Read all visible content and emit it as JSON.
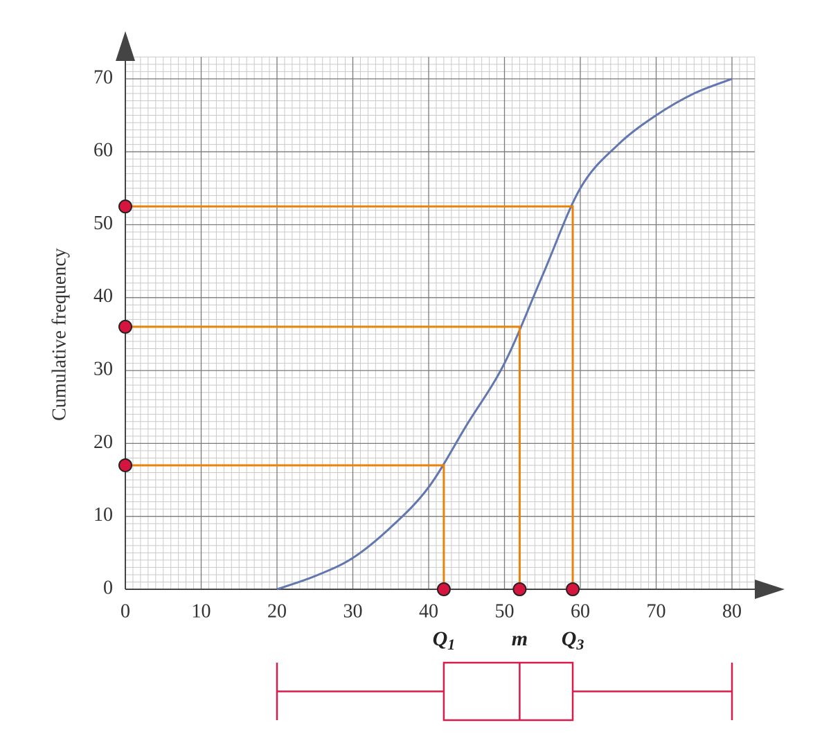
{
  "chart_data": {
    "type": "line",
    "y_label": "Cumulative frequency",
    "series": [
      {
        "color": "#6277b0",
        "x": [
          20,
          25,
          30,
          35,
          40,
          45,
          50,
          55,
          60,
          65,
          70,
          75,
          80
        ],
        "values": [
          0,
          1.8,
          4.3,
          8.5,
          14,
          22.5,
          31,
          43,
          55,
          61,
          65,
          68,
          70
        ]
      }
    ],
    "xlim": [
      0,
      83
    ],
    "ylim": [
      0,
      73
    ],
    "xticks": [
      0,
      10,
      20,
      30,
      40,
      50,
      60,
      70,
      80
    ],
    "yticks": [
      0,
      10,
      20,
      30,
      40,
      50,
      60,
      70
    ],
    "grid": true,
    "minor_grid_step": 1,
    "quartiles": [
      {
        "x": 42,
        "y": 17,
        "label": {
          "main": "Q",
          "sub": "1"
        }
      },
      {
        "x": 52,
        "y": 36,
        "label": {
          "main": "m"
        }
      },
      {
        "x": 59,
        "y": 52.5,
        "label": {
          "main": "Q",
          "sub": "3"
        }
      }
    ],
    "quartile_line_color": "#e8820c",
    "dot_color": "#d6153f",
    "boxplot": {
      "min": 20,
      "q1": 42,
      "median": 52,
      "q3": 59,
      "max": 80,
      "color": "#d81b4a"
    }
  }
}
